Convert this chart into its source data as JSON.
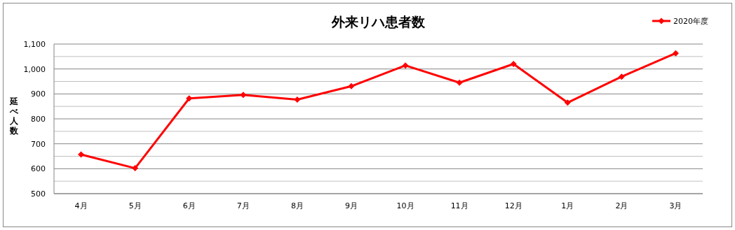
{
  "chart_data": {
    "type": "line",
    "title": "外来リハ患者数",
    "ylabel": "延べ人数",
    "categories": [
      "4月",
      "5月",
      "6月",
      "7月",
      "8月",
      "9月",
      "10月",
      "11月",
      "12月",
      "1月",
      "2月",
      "3月"
    ],
    "series": [
      {
        "name": "2020年度",
        "color": "#ff0000",
        "values": [
          657,
          602,
          882,
          896,
          877,
          931,
          1014,
          945,
          1020,
          865,
          969,
          1063
        ]
      }
    ],
    "ylim": [
      500,
      1100
    ],
    "yticks": [
      500,
      {
        "value": 550,
        "label": null
      },
      600,
      {
        "value": 650,
        "label": null
      },
      700,
      {
        "value": 750,
        "label": null
      },
      800,
      {
        "value": 850,
        "label": null
      },
      900,
      {
        "value": 950,
        "label": null
      },
      {
        "value": 1000,
        "label": "1,000"
      },
      {
        "value": 1050,
        "label": null
      },
      {
        "value": 1100,
        "label": "1,100"
      }
    ],
    "grid": "y",
    "legend": "top right",
    "marker": "diamond",
    "line_style": "solid"
  }
}
